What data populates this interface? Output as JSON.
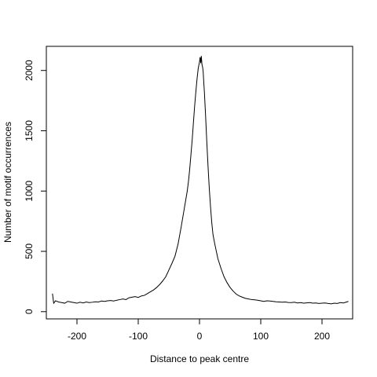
{
  "chart_data": {
    "type": "line",
    "title": "",
    "xlabel": "Distance to peak centre",
    "ylabel": "Number of motif occurrences",
    "xlim": [
      -250,
      250
    ],
    "ylim": [
      -60,
      2200
    ],
    "x_ticks": [
      -200,
      -100,
      0,
      100,
      200
    ],
    "x_tick_labels": [
      "-200",
      "-100",
      "0",
      "100",
      "200"
    ],
    "y_ticks": [
      0,
      500,
      1000,
      1500,
      2000
    ],
    "y_tick_labels": [
      "0",
      "500",
      "1000",
      "1500",
      "2000"
    ],
    "grid": false,
    "line_color": "#000000",
    "series": [
      {
        "x": [
          -240,
          -238,
          -235,
          -230,
          -225,
          -220,
          -215,
          -210,
          -205,
          -200,
          -195,
          -190,
          -185,
          -180,
          -175,
          -170,
          -165,
          -160,
          -155,
          -150,
          -145,
          -140,
          -135,
          -130,
          -125,
          -120,
          -115,
          -110,
          -105,
          -100,
          -95,
          -90,
          -85,
          -80,
          -75,
          -70,
          -65,
          -60,
          -55,
          -50,
          -45,
          -40,
          -35,
          -30,
          -25,
          -20,
          -18,
          -16,
          -14,
          -12,
          -10,
          -8,
          -6,
          -4,
          -2,
          0,
          1,
          2,
          3,
          4,
          5,
          6,
          7,
          8,
          10,
          12,
          14,
          16,
          18,
          20,
          22,
          25,
          30,
          35,
          40,
          45,
          50,
          55,
          60,
          65,
          70,
          75,
          80,
          85,
          90,
          95,
          100,
          105,
          110,
          115,
          120,
          125,
          130,
          135,
          140,
          145,
          150,
          155,
          160,
          165,
          170,
          175,
          180,
          185,
          190,
          195,
          200,
          205,
          210,
          215,
          220,
          225,
          230,
          235,
          240,
          243
        ],
        "y": [
          150,
          70,
          90,
          80,
          75,
          70,
          85,
          80,
          75,
          70,
          78,
          72,
          80,
          75,
          78,
          82,
          80,
          88,
          85,
          90,
          92,
          88,
          95,
          100,
          105,
          100,
          115,
          120,
          125,
          118,
          130,
          135,
          150,
          165,
          180,
          200,
          225,
          255,
          290,
          345,
          400,
          460,
          560,
          700,
          850,
          1000,
          1080,
          1180,
          1300,
          1420,
          1560,
          1700,
          1820,
          1930,
          2020,
          2070,
          2110,
          2060,
          2120,
          2050,
          2030,
          1990,
          1900,
          1820,
          1620,
          1400,
          1200,
          1020,
          870,
          740,
          640,
          560,
          440,
          360,
          290,
          240,
          200,
          170,
          145,
          130,
          120,
          110,
          105,
          100,
          98,
          95,
          90,
          85,
          90,
          88,
          85,
          82,
          80,
          78,
          80,
          76,
          75,
          78,
          72,
          75,
          70,
          73,
          75,
          70,
          72,
          68,
          70,
          72,
          68,
          65,
          70,
          68,
          75,
          72,
          80,
          85
        ]
      }
    ]
  }
}
